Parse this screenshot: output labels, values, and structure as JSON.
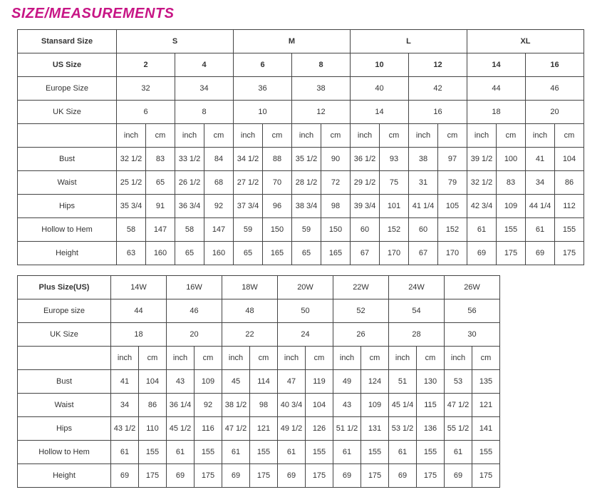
{
  "title": "SIZE/MEASUREMENTS",
  "standard": {
    "header_label": "Stansard Size",
    "top_sizes": [
      "S",
      "M",
      "L",
      "XL"
    ],
    "rows_meta": [
      {
        "label": "US Size",
        "vals": [
          "2",
          "4",
          "6",
          "8",
          "10",
          "12",
          "14",
          "16"
        ],
        "bold": true
      },
      {
        "label": "Europe Size",
        "vals": [
          "32",
          "34",
          "36",
          "38",
          "40",
          "42",
          "44",
          "46"
        ]
      },
      {
        "label": "UK Size",
        "vals": [
          "6",
          "8",
          "10",
          "12",
          "14",
          "16",
          "18",
          "20"
        ]
      }
    ],
    "unit_row_label": "",
    "units": [
      "inch",
      "cm"
    ],
    "measure_rows": [
      {
        "label": "Bust",
        "cells": [
          [
            "32 1/2",
            "83"
          ],
          [
            "33 1/2",
            "84"
          ],
          [
            "34 1/2",
            "88"
          ],
          [
            "35 1/2",
            "90"
          ],
          [
            "36 1/2",
            "93"
          ],
          [
            "38",
            "97"
          ],
          [
            "39 1/2",
            "100"
          ],
          [
            "41",
            "104"
          ]
        ]
      },
      {
        "label": "Waist",
        "cells": [
          [
            "25 1/2",
            "65"
          ],
          [
            "26 1/2",
            "68"
          ],
          [
            "27 1/2",
            "70"
          ],
          [
            "28 1/2",
            "72"
          ],
          [
            "29 1/2",
            "75"
          ],
          [
            "31",
            "79"
          ],
          [
            "32 1/2",
            "83"
          ],
          [
            "34",
            "86"
          ]
        ]
      },
      {
        "label": "Hips",
        "cells": [
          [
            "35 3/4",
            "91"
          ],
          [
            "36 3/4",
            "92"
          ],
          [
            "37 3/4",
            "96"
          ],
          [
            "38 3/4",
            "98"
          ],
          [
            "39 3/4",
            "101"
          ],
          [
            "41 1/4",
            "105"
          ],
          [
            "42 3/4",
            "109"
          ],
          [
            "44 1/4",
            "112"
          ]
        ]
      },
      {
        "label": "Hollow to Hem",
        "cells": [
          [
            "58",
            "147"
          ],
          [
            "58",
            "147"
          ],
          [
            "59",
            "150"
          ],
          [
            "59",
            "150"
          ],
          [
            "60",
            "152"
          ],
          [
            "60",
            "152"
          ],
          [
            "61",
            "155"
          ],
          [
            "61",
            "155"
          ]
        ]
      },
      {
        "label": "Height",
        "cells": [
          [
            "63",
            "160"
          ],
          [
            "65",
            "160"
          ],
          [
            "65",
            "165"
          ],
          [
            "65",
            "165"
          ],
          [
            "67",
            "170"
          ],
          [
            "67",
            "170"
          ],
          [
            "69",
            "175"
          ],
          [
            "69",
            "175"
          ]
        ]
      }
    ]
  },
  "plus": {
    "header_label": "Plus Size(US)",
    "top_sizes": [
      "14W",
      "16W",
      "18W",
      "20W",
      "22W",
      "24W",
      "26W"
    ],
    "rows_meta": [
      {
        "label": "Europe size",
        "vals": [
          "44",
          "46",
          "48",
          "50",
          "52",
          "54",
          "56"
        ]
      },
      {
        "label": "UK Size",
        "vals": [
          "18",
          "20",
          "22",
          "24",
          "26",
          "28",
          "30"
        ]
      }
    ],
    "units": [
      "inch",
      "cm"
    ],
    "measure_rows": [
      {
        "label": "Bust",
        "cells": [
          [
            "41",
            "104"
          ],
          [
            "43",
            "109"
          ],
          [
            "45",
            "114"
          ],
          [
            "47",
            "119"
          ],
          [
            "49",
            "124"
          ],
          [
            "51",
            "130"
          ],
          [
            "53",
            "135"
          ]
        ]
      },
      {
        "label": "Waist",
        "cells": [
          [
            "34",
            "86"
          ],
          [
            "36 1/4",
            "92"
          ],
          [
            "38 1/2",
            "98"
          ],
          [
            "40 3/4",
            "104"
          ],
          [
            "43",
            "109"
          ],
          [
            "45 1/4",
            "115"
          ],
          [
            "47 1/2",
            "121"
          ]
        ]
      },
      {
        "label": "Hips",
        "cells": [
          [
            "43 1/2",
            "110"
          ],
          [
            "45 1/2",
            "116"
          ],
          [
            "47 1/2",
            "121"
          ],
          [
            "49 1/2",
            "126"
          ],
          [
            "51 1/2",
            "131"
          ],
          [
            "53 1/2",
            "136"
          ],
          [
            "55 1/2",
            "141"
          ]
        ]
      },
      {
        "label": "Hollow to Hem",
        "cells": [
          [
            "61",
            "155"
          ],
          [
            "61",
            "155"
          ],
          [
            "61",
            "155"
          ],
          [
            "61",
            "155"
          ],
          [
            "61",
            "155"
          ],
          [
            "61",
            "155"
          ],
          [
            "61",
            "155"
          ]
        ]
      },
      {
        "label": "Height",
        "cells": [
          [
            "69",
            "175"
          ],
          [
            "69",
            "175"
          ],
          [
            "69",
            "175"
          ],
          [
            "69",
            "175"
          ],
          [
            "69",
            "175"
          ],
          [
            "69",
            "175"
          ],
          [
            "69",
            "175"
          ]
        ]
      }
    ]
  }
}
